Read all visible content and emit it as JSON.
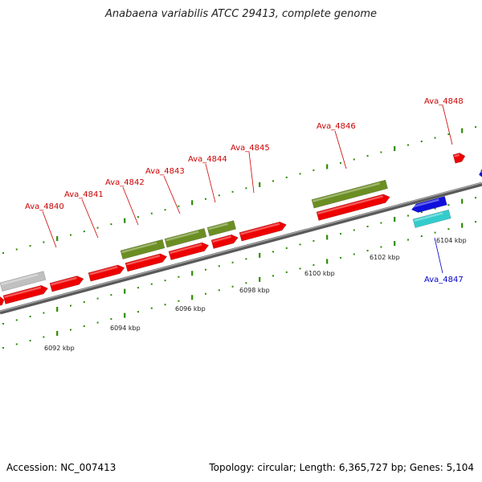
{
  "title": "Anabaena variabilis ATCC 29413, complete genome",
  "footer": {
    "accession": "Accession: NC_007413",
    "summary": "Topology: circular; Length: 6,365,727 bp; Genes: 5,104"
  },
  "colors": {
    "forward_gene": "#ee0000",
    "forward_label": "#cc0000",
    "reverse_gene": "#1010dd",
    "reverse_label": "#0000cc",
    "operon": "#6b8e23",
    "reverse_operon": "#33cccc",
    "pseudo": "#c0c0c0",
    "backbone": "#888888",
    "tick": "#2e8b00"
  },
  "scale_labels": [
    "6092 kbp",
    "6094 kbp",
    "6096 kbp",
    "6098 kbp",
    "6100 kbp",
    "6102 kbp",
    "6104 kbp"
  ],
  "gene_labels": [
    {
      "text": "Ava_4840",
      "strand": "+"
    },
    {
      "text": "Ava_4841",
      "strand": "+"
    },
    {
      "text": "Ava_4842",
      "strand": "+"
    },
    {
      "text": "Ava_4843",
      "strand": "+"
    },
    {
      "text": "Ava_4844",
      "strand": "+"
    },
    {
      "text": "Ava_4845",
      "strand": "+"
    },
    {
      "text": "Ava_4846",
      "strand": "+"
    },
    {
      "text": "Ava_4848",
      "strand": "+"
    },
    {
      "text": "Ava_4847",
      "strand": "-"
    }
  ]
}
